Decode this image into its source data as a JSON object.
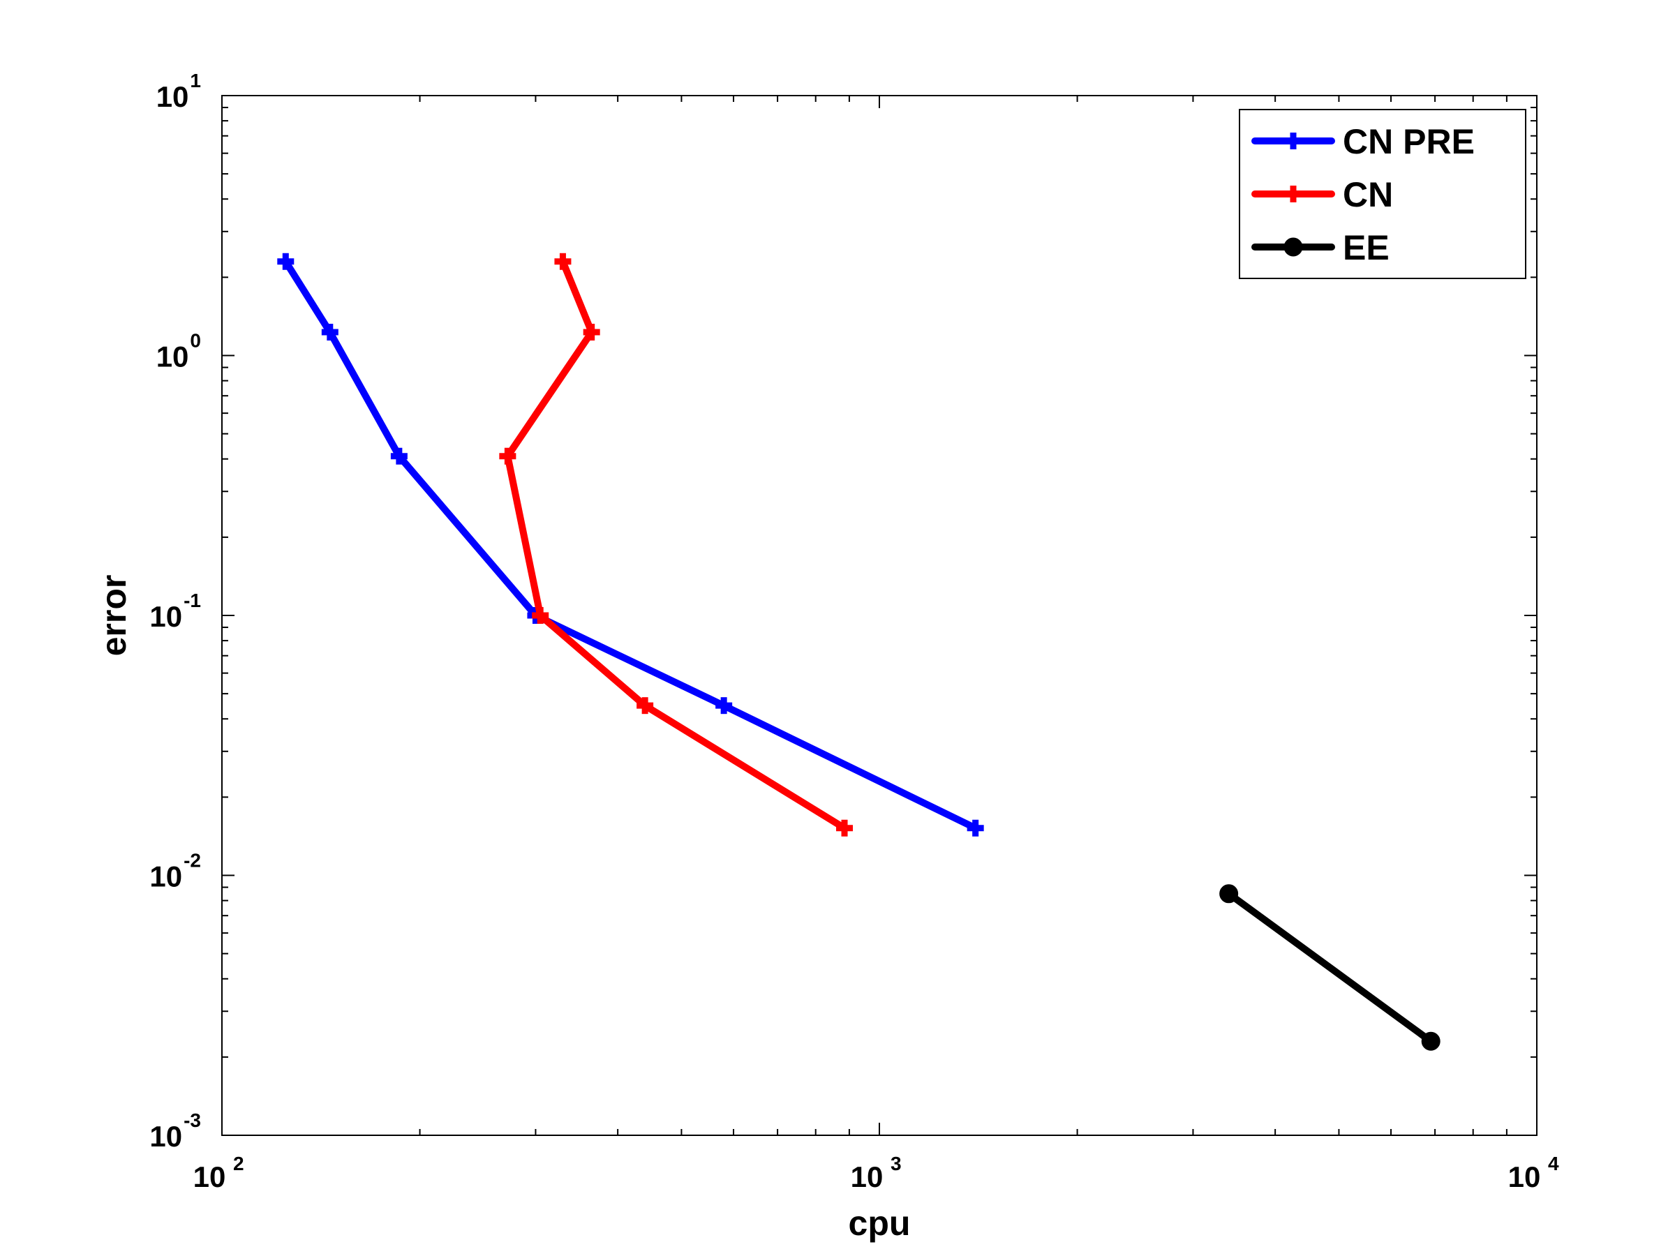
{
  "chart_data": {
    "type": "line",
    "xlabel": "cpu",
    "ylabel": "error",
    "xscale": "log",
    "yscale": "log",
    "xlim": [
      100,
      10000
    ],
    "ylim": [
      0.001,
      10
    ],
    "grid": false,
    "legend_position": "top-right",
    "x_ticks": [
      {
        "base": "10",
        "exp": "2"
      },
      {
        "base": "10",
        "exp": "3"
      },
      {
        "base": "10",
        "exp": "4"
      }
    ],
    "y_ticks": [
      {
        "base": "10",
        "exp": "-3"
      },
      {
        "base": "10",
        "exp": "-2"
      },
      {
        "base": "10",
        "exp": "-1"
      },
      {
        "base": "10",
        "exp": "0"
      },
      {
        "base": "10",
        "exp": "1"
      }
    ],
    "series": [
      {
        "name": "CN PRE",
        "color": "#0000ff",
        "marker": "plus",
        "x": [
          125,
          146,
          186,
          300,
          580,
          1400
        ],
        "y": [
          2.3,
          1.23,
          0.41,
          0.1,
          0.045,
          0.0152
        ]
      },
      {
        "name": "CN",
        "color": "#ff0000",
        "marker": "plus",
        "x": [
          330,
          365,
          272,
          305,
          440,
          885
        ],
        "y": [
          2.3,
          1.23,
          0.41,
          0.1,
          0.045,
          0.0152
        ]
      },
      {
        "name": "EE",
        "color": "#000000",
        "marker": "circle",
        "x": [
          3400,
          6900
        ],
        "y": [
          0.0085,
          0.0023
        ]
      }
    ]
  }
}
